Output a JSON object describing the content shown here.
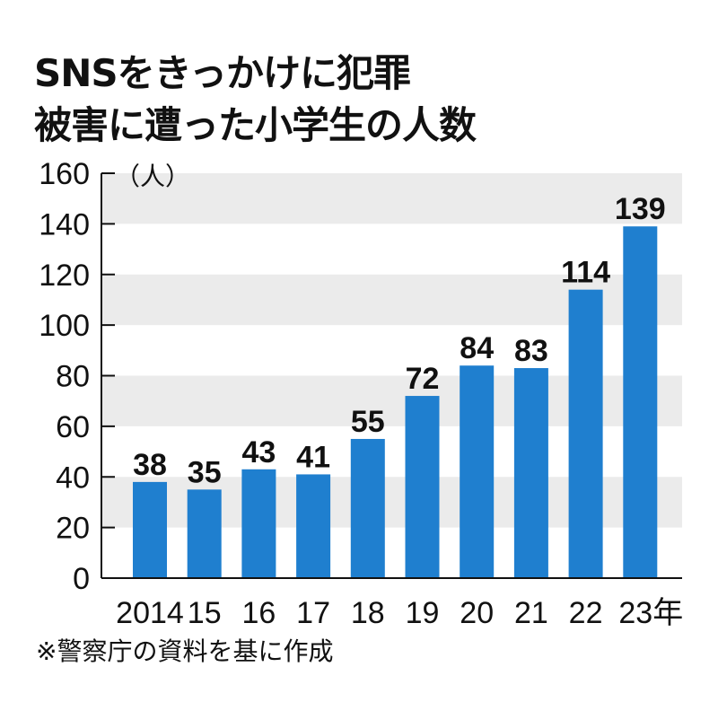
{
  "chart_data": {
    "type": "bar",
    "title_lines": [
      "SNSをきっかけに犯罪",
      "被害に遭った小学生の人数"
    ],
    "unit_label": "（人）",
    "categories": [
      "2014",
      "15",
      "16",
      "17",
      "18",
      "19",
      "20",
      "21",
      "22",
      "23年"
    ],
    "values": [
      38,
      35,
      43,
      41,
      55,
      72,
      84,
      83,
      114,
      139
    ],
    "ylim": [
      0,
      160
    ],
    "yticks": [
      0,
      20,
      40,
      60,
      80,
      100,
      120,
      140,
      160
    ],
    "grid": "alternating horizontal bands",
    "colors": {
      "bar": "#1f7fcf",
      "band": "#ebebeb",
      "text": "#111111"
    },
    "source": "※警察庁の資料を基に作成"
  }
}
